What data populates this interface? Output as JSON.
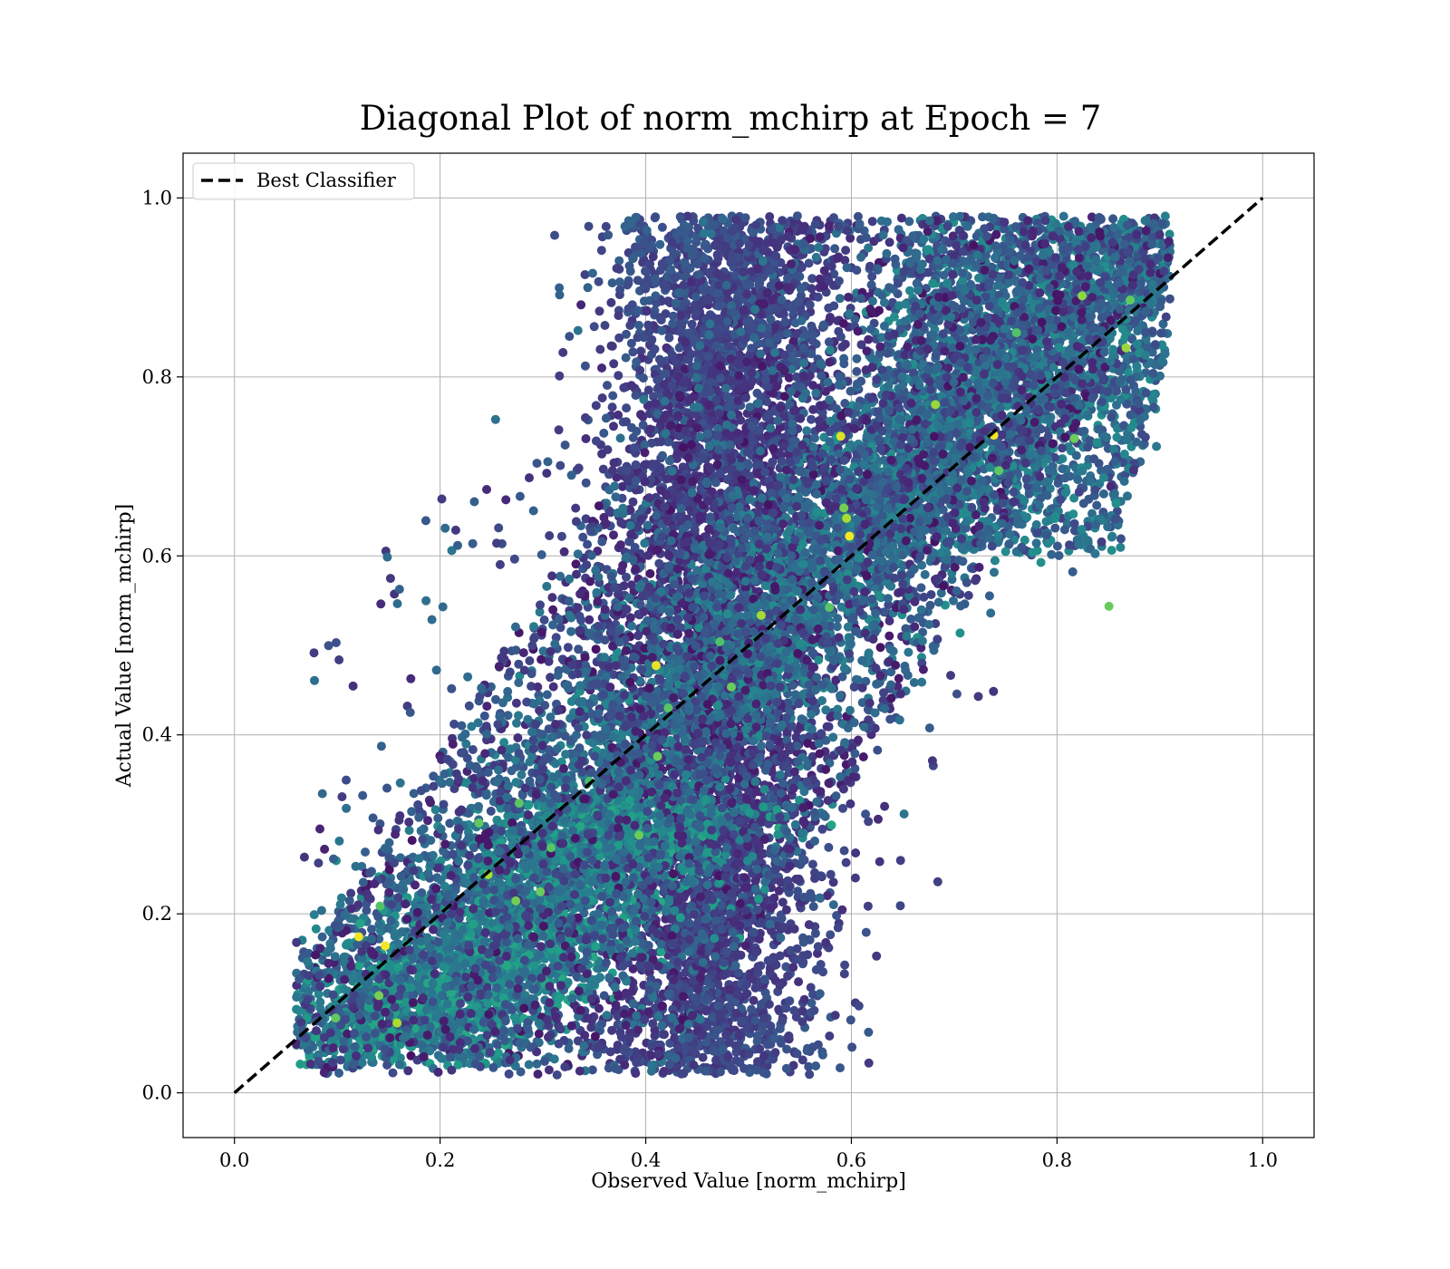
{
  "chart_data": {
    "type": "scatter",
    "title": "Diagonal Plot of norm_mchirp at Epoch = 7",
    "xlabel": "Observed Value [norm_mchirp]",
    "ylabel": "Actual Value [norm_mchirp]",
    "xlim": [
      -0.05,
      1.05
    ],
    "ylim": [
      -0.05,
      1.05
    ],
    "xticks": [
      0.0,
      0.2,
      0.4,
      0.6,
      0.8,
      1.0
    ],
    "yticks": [
      0.0,
      0.2,
      0.4,
      0.6,
      0.8,
      1.0
    ],
    "xtick_labels": [
      "0.0",
      "0.2",
      "0.4",
      "0.6",
      "0.8",
      "1.0"
    ],
    "ytick_labels": [
      "0.0",
      "0.2",
      "0.4",
      "0.6",
      "0.8",
      "1.0"
    ],
    "grid": true,
    "legend": {
      "position": "top-left",
      "entries": [
        "Best Classifier"
      ]
    },
    "colormap": "viridis",
    "reference_line": {
      "name": "Best Classifier",
      "x": [
        0.0,
        1.0
      ],
      "y": [
        0.0,
        1.0
      ],
      "style": "dashed",
      "color": "#000000"
    },
    "scatter_description": {
      "point_count_estimate": 20000,
      "x_range": [
        0.06,
        0.91
      ],
      "y_range": [
        0.01,
        0.99
      ]
    }
  }
}
